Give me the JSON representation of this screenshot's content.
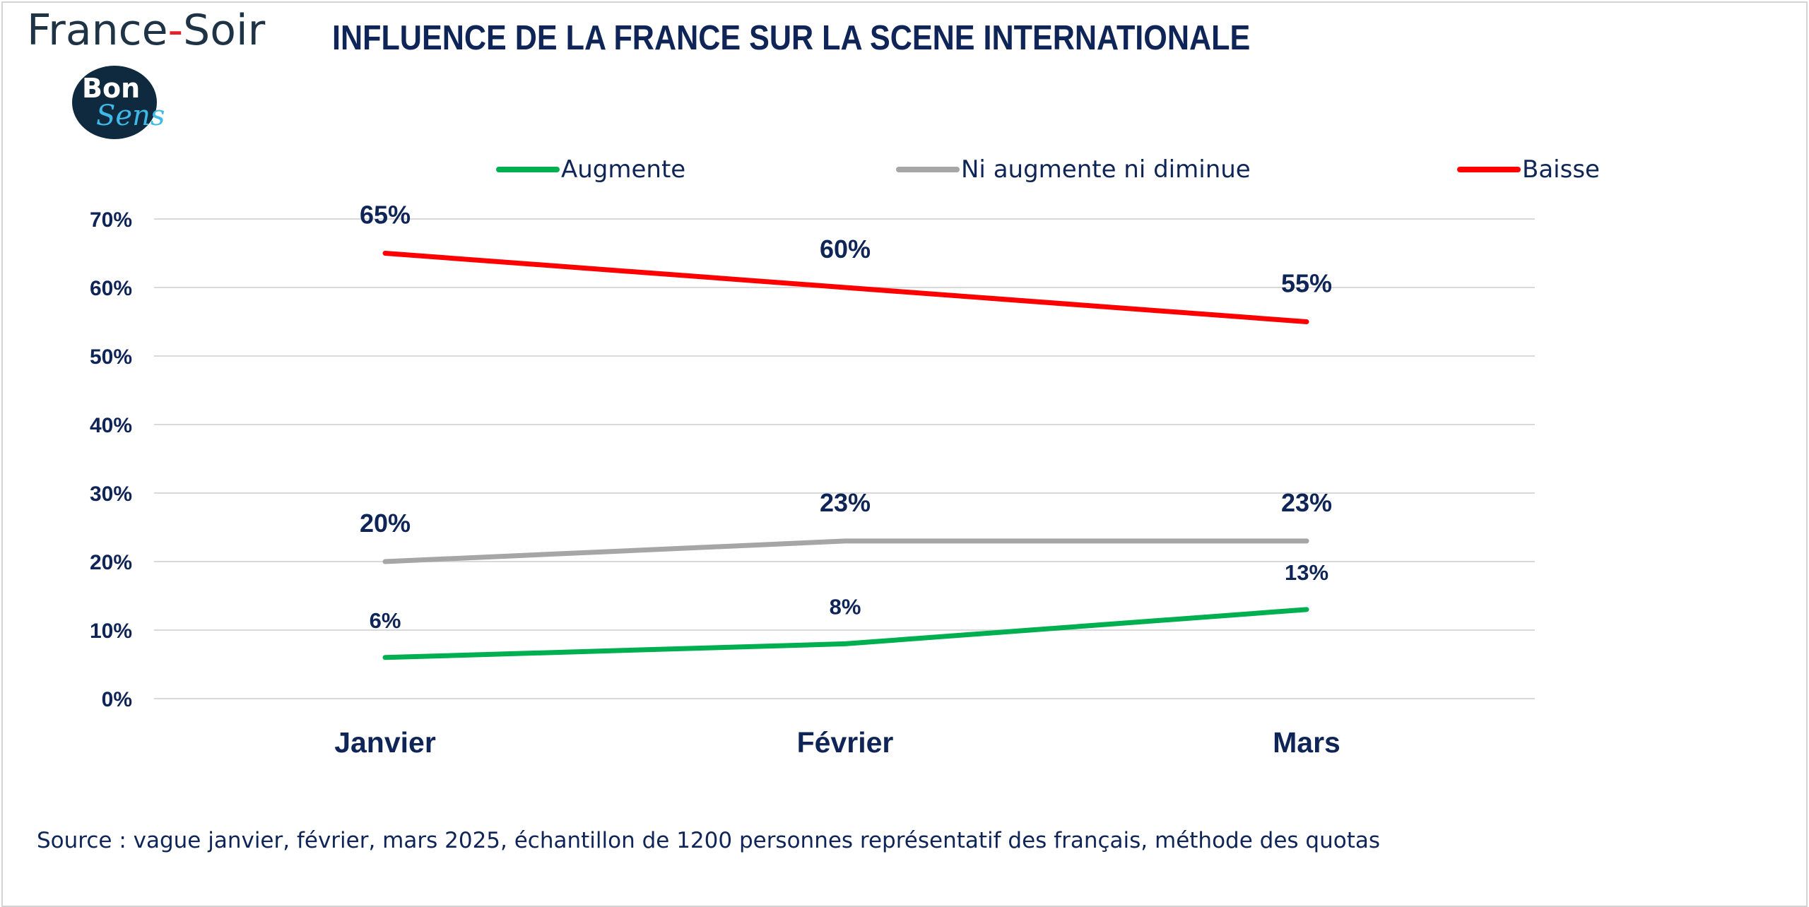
{
  "header": {
    "brand_name": "France",
    "brand_dash": "-",
    "brand_name_2": "Soir",
    "logo_text_1": "Bon",
    "logo_text_2": "Sens"
  },
  "footer": {
    "source": "Source : vague janvier, février, mars 2025, échantillon de 1200 personnes représentatif des français, méthode des quotas"
  },
  "chart_data": {
    "type": "line",
    "title": "INFLUENCE DE LA FRANCE SUR LA SCENE INTERNATIONALE",
    "categories": [
      "Janvier",
      "Février",
      "Mars"
    ],
    "ylim": [
      0,
      70
    ],
    "yticks": [
      0,
      10,
      20,
      30,
      40,
      50,
      60,
      70
    ],
    "ytick_format": "percent",
    "grid": true,
    "legend_position": "top",
    "series": [
      {
        "name": "Augmente",
        "values": [
          6,
          8,
          13
        ],
        "color": "#00b050",
        "labels": [
          "6%",
          "8%",
          "13%"
        ]
      },
      {
        "name": "Ni augmente ni diminue",
        "values": [
          20,
          23,
          23
        ],
        "color": "#a6a6a6",
        "labels": [
          "20%",
          "23%",
          "23%"
        ]
      },
      {
        "name": "Baisse",
        "values": [
          65,
          60,
          55
        ],
        "color": "#ff0000",
        "labels": [
          "65%",
          "60%",
          "55%"
        ]
      }
    ]
  }
}
